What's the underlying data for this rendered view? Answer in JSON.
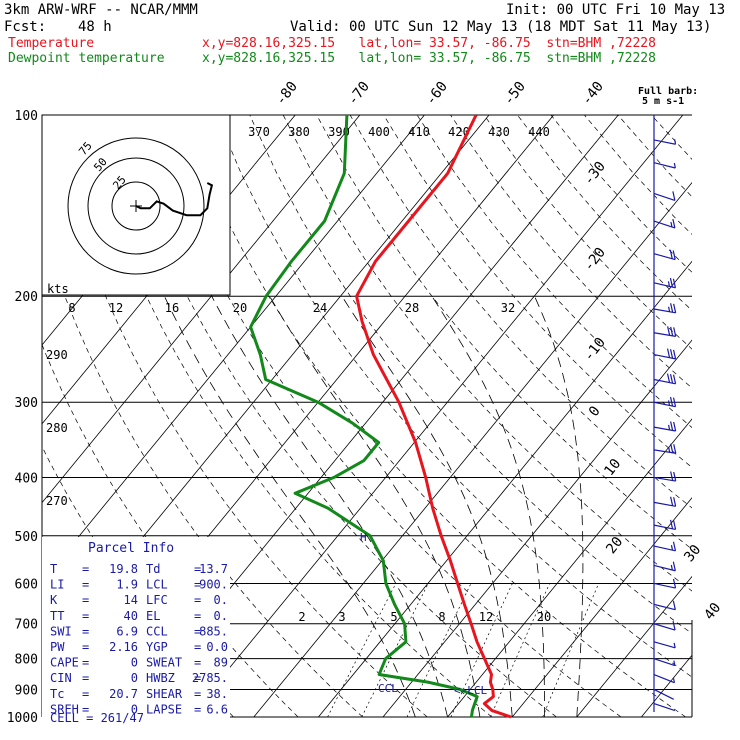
{
  "header": {
    "model": "3km ARW-WRF -- NCAR/MMM",
    "init": "Init: 00 UTC Fri 10 May 13",
    "fcst_label": "Fcst:",
    "fcst_value": "48 h",
    "valid": "Valid: 00 UTC Sun 12 May 13 (18 MDT Sat 11 May 13)",
    "temp_label": "Temperature",
    "temp_loc": "x,y=828.16,325.15   lat,lon= 33.57, -86.75  stn=BHM ,72228",
    "dew_label": "Dewpoint temperature",
    "dew_loc": "x,y=828.16,325.15   lat,lon= 33.57, -86.75  stn=BHM ,72228"
  },
  "colors": {
    "temperature": "#e8141e",
    "dewpoint": "#12891a",
    "wind_barbs": "#1a1aa8",
    "parcel_text": "#1a1aa8",
    "grid": "#000000"
  },
  "chart_data": {
    "type": "skew-t log-p",
    "y_axis": "pressure (hPa), log scale",
    "pressure_levels": [
      100,
      200,
      300,
      400,
      500,
      600,
      700,
      800,
      900,
      1000
    ],
    "isotherm_labels": [
      "-80",
      "-70",
      "-60",
      "-50",
      "-40",
      "-30",
      "-20",
      "-10",
      "0",
      "10",
      "20",
      "30",
      "40"
    ],
    "theta_e_labels": [
      "370",
      "380",
      "390",
      "400",
      "410",
      "420",
      "430",
      "440"
    ],
    "theta_labels": [
      "290",
      "280",
      "270"
    ],
    "mixing_ratio_labels_upper": [
      "8",
      "12",
      "16",
      "20",
      "24",
      "28",
      "32"
    ],
    "mixing_ratio_labels_lower": [
      "2",
      "3",
      "5",
      "8",
      "12",
      "20"
    ],
    "series": [
      {
        "name": "Temperature",
        "points": [
          {
            "p": 1000,
            "t": 19.8
          },
          {
            "p": 975,
            "t": 16.0
          },
          {
            "p": 950,
            "t": 14.0
          },
          {
            "p": 925,
            "t": 14.5
          },
          {
            "p": 900,
            "t": 13.5
          },
          {
            "p": 875,
            "t": 12.2
          },
          {
            "p": 850,
            "t": 11.4
          },
          {
            "p": 800,
            "t": 8.3
          },
          {
            "p": 750,
            "t": 5.0
          },
          {
            "p": 700,
            "t": 1.8
          },
          {
            "p": 650,
            "t": -1.7
          },
          {
            "p": 600,
            "t": -5.4
          },
          {
            "p": 550,
            "t": -9.4
          },
          {
            "p": 500,
            "t": -14.0
          },
          {
            "p": 450,
            "t": -18.8
          },
          {
            "p": 400,
            "t": -23.8
          },
          {
            "p": 350,
            "t": -29.8
          },
          {
            "p": 300,
            "t": -37.5
          },
          {
            "p": 250,
            "t": -47.5
          },
          {
            "p": 220,
            "t": -53.5
          },
          {
            "p": 200,
            "t": -57.5
          },
          {
            "p": 175,
            "t": -59.0
          },
          {
            "p": 150,
            "t": -59.0
          },
          {
            "p": 125,
            "t": -59.0
          },
          {
            "p": 100,
            "t": -62.0
          }
        ]
      },
      {
        "name": "Dewpoint temperature",
        "points": [
          {
            "p": 1000,
            "t": 13.7
          },
          {
            "p": 975,
            "t": 13.0
          },
          {
            "p": 950,
            "t": 12.5
          },
          {
            "p": 925,
            "t": 12.0
          },
          {
            "p": 900,
            "t": 8.5
          },
          {
            "p": 875,
            "t": 2.5
          },
          {
            "p": 850,
            "t": -6.0
          },
          {
            "p": 800,
            "t": -7.0
          },
          {
            "p": 750,
            "t": -6.0
          },
          {
            "p": 700,
            "t": -8.5
          },
          {
            "p": 650,
            "t": -12.5
          },
          {
            "p": 600,
            "t": -16.5
          },
          {
            "p": 550,
            "t": -19.8
          },
          {
            "p": 500,
            "t": -25.0
          },
          {
            "p": 450,
            "t": -35.0
          },
          {
            "p": 425,
            "t": -42.0
          },
          {
            "p": 400,
            "t": -38.0
          },
          {
            "p": 375,
            "t": -35.5
          },
          {
            "p": 350,
            "t": -35.5
          },
          {
            "p": 325,
            "t": -42.0
          },
          {
            "p": 300,
            "t": -50.0
          },
          {
            "p": 275,
            "t": -61.0
          },
          {
            "p": 250,
            "t": -65.0
          },
          {
            "p": 225,
            "t": -70.0
          },
          {
            "p": 200,
            "t": -71.5
          },
          {
            "p": 175,
            "t": -72.0
          },
          {
            "p": 150,
            "t": -72.0
          },
          {
            "p": 125,
            "t": -75.0
          },
          {
            "p": 100,
            "t": -82.0
          }
        ]
      }
    ],
    "wind_barbs_label": "Full barb:",
    "wind_barbs_unit": "5 m s-1",
    "wind_barbs": [
      {
        "p": 110,
        "u": -2.5,
        "v": 0.5
      },
      {
        "p": 120,
        "u": -4,
        "v": 1
      },
      {
        "p": 135,
        "u": -6,
        "v": 2
      },
      {
        "p": 150,
        "u": -9,
        "v": 3
      },
      {
        "p": 170,
        "u": -11,
        "v": 3
      },
      {
        "p": 190,
        "u": -13,
        "v": 3
      },
      {
        "p": 210,
        "u": -14,
        "v": 2.5
      },
      {
        "p": 230,
        "u": -15,
        "v": 2.5
      },
      {
        "p": 250,
        "u": -15,
        "v": 3
      },
      {
        "p": 275,
        "u": -15,
        "v": 3
      },
      {
        "p": 300,
        "u": -14.5,
        "v": 3
      },
      {
        "p": 330,
        "u": -14,
        "v": 2.5
      },
      {
        "p": 360,
        "u": -13,
        "v": 2
      },
      {
        "p": 400,
        "u": -12,
        "v": 2
      },
      {
        "p": 440,
        "u": -11,
        "v": 2
      },
      {
        "p": 480,
        "u": -10,
        "v": 2
      },
      {
        "p": 520,
        "u": -9,
        "v": 2
      },
      {
        "p": 560,
        "u": -8,
        "v": 2
      },
      {
        "p": 600,
        "u": -7,
        "v": 1.5
      },
      {
        "p": 650,
        "u": -6,
        "v": 1.5
      },
      {
        "p": 700,
        "u": -5,
        "v": 1.5
      },
      {
        "p": 750,
        "u": -3.5,
        "v": 1
      },
      {
        "p": 800,
        "u": -3,
        "v": 1
      },
      {
        "p": 850,
        "u": -2.5,
        "v": 1
      },
      {
        "p": 900,
        "u": -2,
        "v": 1
      },
      {
        "p": 950,
        "u": -1.5,
        "v": 0.5
      }
    ],
    "hodograph": {
      "rings_label": "kts",
      "ring_labels": [
        "25",
        "50",
        "75"
      ],
      "points": [
        [
          0,
          0
        ],
        [
          2,
          -1
        ],
        [
          6,
          -1
        ],
        [
          9,
          2
        ],
        [
          12,
          1
        ],
        [
          16,
          -2
        ],
        [
          22,
          -4
        ],
        [
          28,
          -4
        ],
        [
          31,
          -1
        ],
        [
          32,
          5
        ],
        [
          33,
          9
        ],
        [
          31,
          10
        ]
      ]
    },
    "annotations": {
      "ccl": "CCL",
      "lcl": "LCL"
    }
  },
  "parcel_info": {
    "title": "Parcel Info",
    "rows": [
      {
        "l1": "T",
        "v1": "19.8",
        "l2": "Td",
        "v2": "13.7"
      },
      {
        "l1": "LI",
        "v1": "1.9",
        "l2": "LCL",
        "v2": "900."
      },
      {
        "l1": "K",
        "v1": "14",
        "l2": "LFC",
        "v2": "0."
      },
      {
        "l1": "TT",
        "v1": "40",
        "l2": "EL",
        "v2": "0."
      },
      {
        "l1": "SWI",
        "v1": "6.9",
        "l2": "CCL",
        "v2": "885."
      },
      {
        "l1": "PW",
        "v1": "2.16",
        "l2": "YGP",
        "v2": "0.0"
      },
      {
        "l1": "CAPE",
        "v1": "0",
        "l2": "SWEAT",
        "v2": "89"
      },
      {
        "l1": "CIN",
        "v1": "0",
        "l2": "HWBZ",
        "v2": "2785."
      },
      {
        "l1": "Tc",
        "v1": "20.7",
        "l2": "SHEAR",
        "v2": "38."
      },
      {
        "l1": "SREH",
        "v1": "0",
        "l2": "LAPSE",
        "v2": "6.6"
      }
    ],
    "cell": "CELL = 261/47"
  }
}
